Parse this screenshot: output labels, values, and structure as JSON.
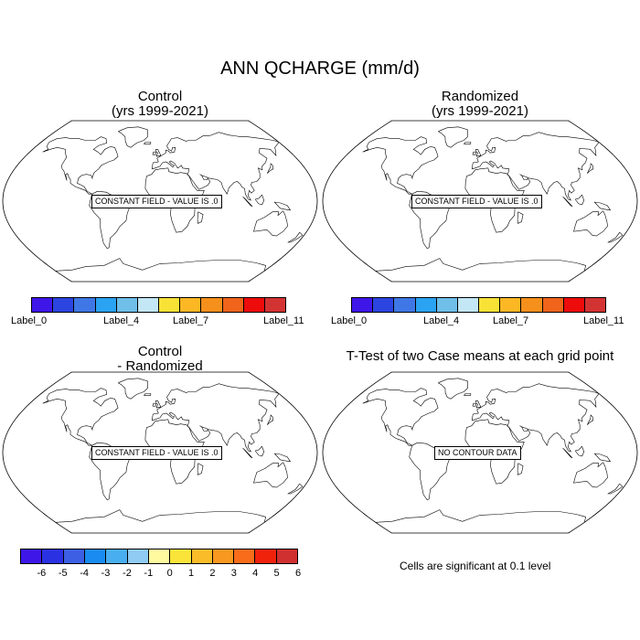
{
  "title": "ANN QCHARGE (mm/d)",
  "panels": [
    {
      "title1": "Control",
      "title2": "(yrs 1999-2021)",
      "message": "CONSTANT FIELD - VALUE IS .0"
    },
    {
      "title1": "Randomized",
      "title2": "(yrs 1999-2021)",
      "message": "CONSTANT FIELD - VALUE IS .0"
    },
    {
      "title1": "Control",
      "title2": "- Randomized",
      "message": "CONSTANT FIELD - VALUE IS .0"
    },
    {
      "title1": "T-Test of two Case means at each grid point",
      "message": "NO CONTOUR DATA"
    }
  ],
  "colorbar_top": {
    "colors": [
      "#3e17e8",
      "#2c45e0",
      "#3f78e6",
      "#2aa3f3",
      "#6fbfe9",
      "#c4e7f6",
      "#f9e236",
      "#fbb824",
      "#f6901c",
      "#f0641b",
      "#ee0b0b",
      "#d43333"
    ],
    "labels": [
      "Label_0",
      "Label_4",
      "Label_7",
      "Label_11"
    ]
  },
  "colorbar_diff": {
    "colors": [
      "#3e17e8",
      "#2a31e2",
      "#3c5fe3",
      "#1a8bf0",
      "#49aef0",
      "#8fcbf2",
      "#fffaa0",
      "#fbe43a",
      "#fbbc29",
      "#f89820",
      "#f86c1a",
      "#f0220c",
      "#d0302f"
    ],
    "labels": [
      "-6",
      "-5",
      "-4",
      "-3",
      "-2",
      "-1",
      "0",
      "1",
      "2",
      "3",
      "4",
      "5",
      "6"
    ]
  },
  "significance_note": "Cells are significant at 0.1 level"
}
